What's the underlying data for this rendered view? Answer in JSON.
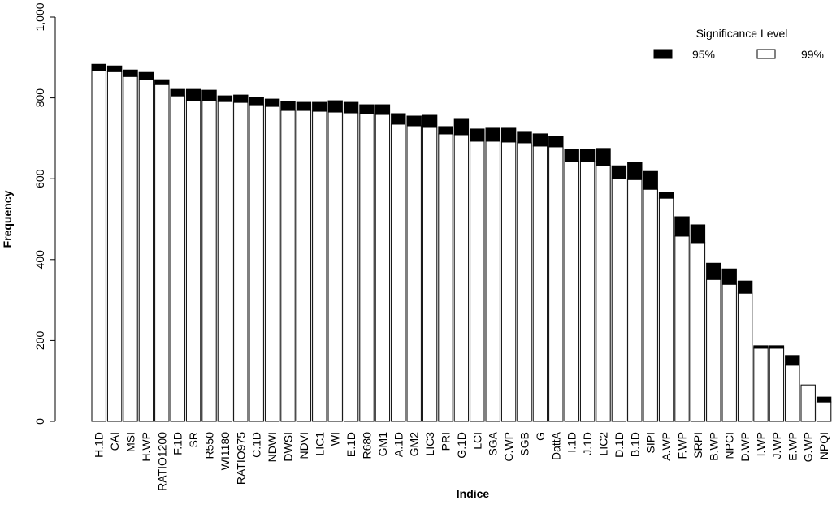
{
  "chart_data": {
    "type": "stacked-bar",
    "x_label": "Indice",
    "y_label": "Frequency",
    "legend_title": "Significance Level",
    "categories": [
      "H.1D",
      "CAI",
      "MSI",
      "H.WP",
      "RATIO1200",
      "F.1D",
      "SR",
      "R550",
      "WI1180",
      "RATIO975",
      "C.1D",
      "NDWI",
      "DWSI",
      "NDVI",
      "LIC1",
      "WI",
      "E.1D",
      "R680",
      "GM1",
      "A.1D",
      "GM2",
      "LIC3",
      "PRI",
      "G.1D",
      "LCI",
      "SGA",
      "C.WP",
      "SGB",
      "G",
      "DattA",
      "I.1D",
      "J.1D",
      "LIC2",
      "D.1D",
      "B.1D",
      "SIPI",
      "A.WP",
      "F.WP",
      "SRPI",
      "B.WP",
      "NPCI",
      "D.WP",
      "I.WP",
      "J.WP",
      "E.WP",
      "G.WP",
      "NPQI"
    ],
    "series": [
      {
        "name": "95%",
        "color": "#000000",
        "values": [
          16,
          14,
          16,
          18,
          12,
          16,
          28,
          26,
          14,
          18,
          18,
          18,
          22,
          20,
          22,
          28,
          26,
          22,
          24,
          26,
          24,
          30,
          18,
          40,
          30,
          32,
          34,
          28,
          30,
          26,
          30,
          30,
          42,
          32,
          43,
          44,
          14,
          48,
          44,
          40,
          38,
          30,
          6,
          6,
          24,
          0,
          12
        ]
      },
      {
        "name": "99%",
        "color": "#ffffff",
        "values": [
          867,
          865,
          853,
          845,
          833,
          805,
          793,
          793,
          791,
          789,
          783,
          779,
          769,
          769,
          767,
          765,
          763,
          761,
          759,
          735,
          731,
          727,
          711,
          709,
          693,
          693,
          691,
          689,
          681,
          679,
          643,
          643,
          633,
          600,
          598,
          574,
          552,
          458,
          442,
          351,
          339,
          317,
          181,
          181,
          139,
          90,
          48
        ]
      }
    ],
    "ylim": [
      0,
      1000
    ],
    "yticks": [
      0,
      200,
      400,
      600,
      800,
      {
        "value": 1000,
        "label": "1,000"
      }
    ]
  }
}
